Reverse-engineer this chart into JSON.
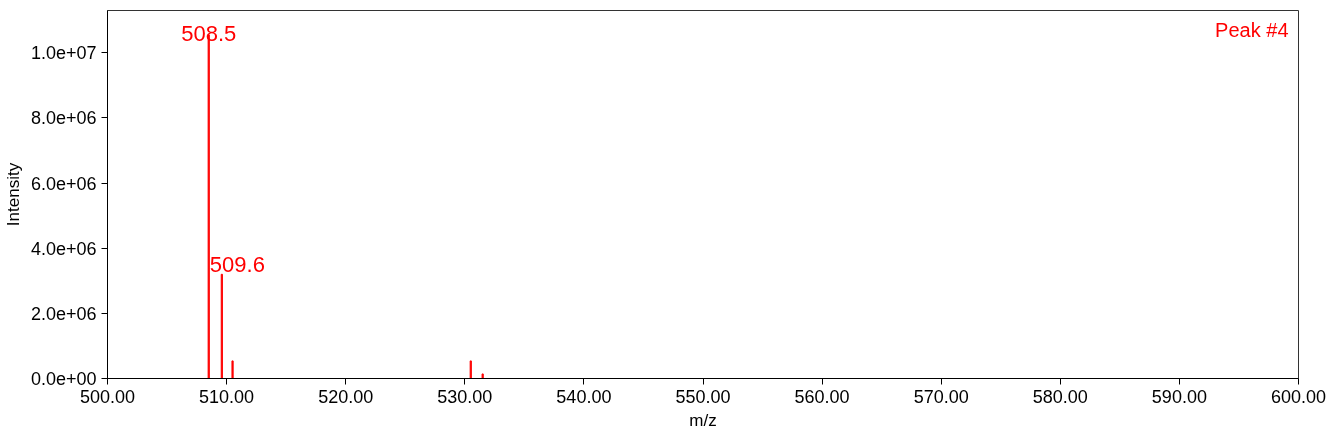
{
  "chart_data": {
    "type": "bar",
    "xlabel": "m/z",
    "ylabel": "Intensity",
    "x": [
      508.5,
      509.6,
      510.5,
      530.5,
      531.5
    ],
    "series": [
      {
        "color": "#ff0000",
        "values": [
          10550000,
          3200000,
          540000,
          540000,
          140000
        ]
      }
    ],
    "xlim": [
      500,
      600
    ],
    "ylim": [
      0,
      11300000
    ],
    "xticks": [
      {
        "value": 500,
        "label": "500.00"
      },
      {
        "value": 510,
        "label": "510.00"
      },
      {
        "value": 520,
        "label": "520.00"
      },
      {
        "value": 530,
        "label": "530.00"
      },
      {
        "value": 540,
        "label": "540.00"
      },
      {
        "value": 550,
        "label": "550.00"
      },
      {
        "value": 560,
        "label": "560.00"
      },
      {
        "value": 570,
        "label": "570.00"
      },
      {
        "value": 580,
        "label": "580.00"
      },
      {
        "value": 590,
        "label": "590.00"
      },
      {
        "value": 600,
        "label": "600.00"
      }
    ],
    "yticks": [
      {
        "value": 0,
        "label": "0.0e+00"
      },
      {
        "value": 2000000,
        "label": "2.0e+06"
      },
      {
        "value": 4000000,
        "label": "4.0e+06"
      },
      {
        "value": 6000000,
        "label": "6.0e+06"
      },
      {
        "value": 8000000,
        "label": "8.0e+06"
      },
      {
        "value": 10000000,
        "label": "1.0e+07"
      }
    ],
    "annotations": [
      {
        "text": "508.5",
        "x": 508.5,
        "y": 10550000
      },
      {
        "text": "509.6",
        "x": 509.6,
        "y": 3200000
      },
      "Peak #4"
    ],
    "grid": false
  }
}
